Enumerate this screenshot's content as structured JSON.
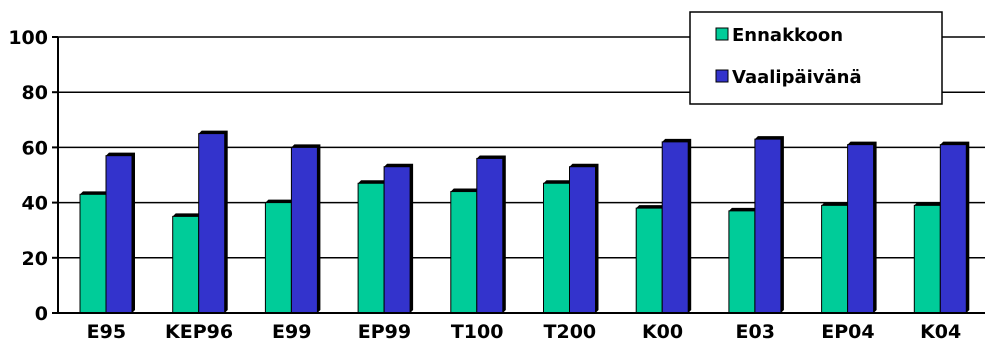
{
  "chart_data": {
    "type": "bar",
    "categories": [
      "E95",
      "KEP96",
      "E99",
      "EP99",
      "T100",
      "T200",
      "K00",
      "E03",
      "EP04",
      "K04"
    ],
    "series": [
      {
        "name": "Ennakkoon",
        "color": "#00cc99",
        "values": [
          43,
          35,
          40,
          47,
          44,
          47,
          38,
          37,
          39,
          39
        ]
      },
      {
        "name": "Vaalipäivänä",
        "color": "#3333cc",
        "values": [
          57,
          65,
          60,
          53,
          56,
          53,
          62,
          63,
          61,
          61
        ]
      }
    ],
    "yticks": [
      0,
      20,
      40,
      60,
      80,
      100
    ],
    "ylim": [
      0,
      100
    ],
    "grid": true,
    "legend_position": "top-right",
    "title": "",
    "xlabel": "",
    "ylabel": ""
  }
}
